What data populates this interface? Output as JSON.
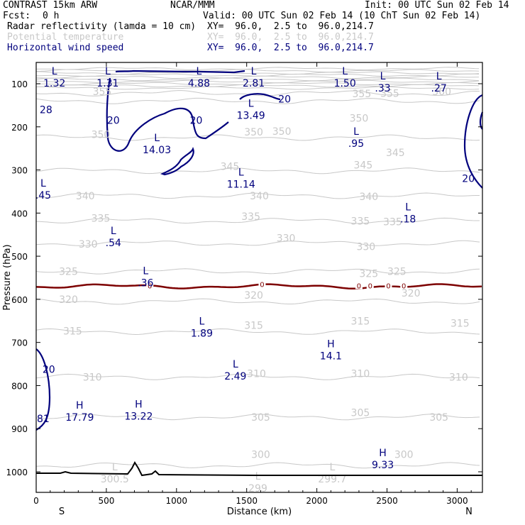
{
  "header": {
    "model": "CONTRAST 15km ARW",
    "org": "NCAR/MMM",
    "init": "Init: 00 UTC Sun 02 Feb 14",
    "fcst_label": "Fcst:",
    "fcst_value": "0 h",
    "valid": "Valid: 00 UTC Sun 02 Feb 14 (10 ChT Sun 02 Feb 14)",
    "fields": [
      {
        "name": "Radar reflectivity (lamda = 10 cm)",
        "xy": "XY=  96.0,  2.5 to  96.0,214.7",
        "color": "#000000"
      },
      {
        "name": "Potential temperature",
        "xy": "XY=  96.0,  2.5 to  96.0,214.7",
        "color": "#c8c8c8"
      },
      {
        "name": "Horizontal wind speed",
        "xy": "XY=  96.0,  2.5 to  96.0,214.7",
        "color": "#00007d"
      }
    ]
  },
  "chart_data": {
    "type": "contour-cross-section",
    "xlabel": "Distance (km)",
    "ylabel": "Pressure (hPa)",
    "xlim": [
      0,
      3180
    ],
    "ylim": [
      1040,
      57
    ],
    "x_ticks": [
      0,
      500,
      1000,
      1500,
      2000,
      2500,
      3000
    ],
    "y_ticks": [
      100,
      200,
      300,
      400,
      500,
      600,
      700,
      800,
      900,
      1000
    ],
    "x_end_labels": [
      "S",
      "N"
    ],
    "theta_contours": [
      {
        "level": 300,
        "p": 985,
        "labels": [
          {
            "x": 1600,
            "p": 960
          },
          {
            "x": 2620,
            "p": 960
          }
        ]
      },
      {
        "level": 305,
        "p": 873,
        "labels": [
          {
            "x": 1600,
            "p": 873
          },
          {
            "x": 2310,
            "p": 863
          },
          {
            "x": 2870,
            "p": 873
          }
        ]
      },
      {
        "level": 310,
        "p": 780,
        "labels": [
          {
            "x": 400,
            "p": 780
          },
          {
            "x": 1570,
            "p": 772
          },
          {
            "x": 2310,
            "p": 772
          },
          {
            "x": 3010,
            "p": 780
          }
        ]
      },
      {
        "level": 315,
        "p": 675,
        "labels": [
          {
            "x": 260,
            "p": 673
          },
          {
            "x": 1550,
            "p": 660
          },
          {
            "x": 2310,
            "p": 650
          },
          {
            "x": 3020,
            "p": 655
          }
        ]
      },
      {
        "level": 320,
        "p": 605,
        "labels": [
          {
            "x": 230,
            "p": 600
          },
          {
            "x": 1550,
            "p": 590
          },
          {
            "x": 2670,
            "p": 585
          }
        ]
      },
      {
        "level": 325,
        "p": 535,
        "labels": [
          {
            "x": 230,
            "p": 535
          },
          {
            "x": 2370,
            "p": 540
          },
          {
            "x": 2570,
            "p": 535
          }
        ]
      },
      {
        "level": 330,
        "p": 470,
        "labels": [
          {
            "x": 370,
            "p": 472
          },
          {
            "x": 1780,
            "p": 458
          },
          {
            "x": 2350,
            "p": 478
          }
        ]
      },
      {
        "level": 335,
        "p": 418,
        "labels": [
          {
            "x": 460,
            "p": 412
          },
          {
            "x": 1530,
            "p": 408
          },
          {
            "x": 2310,
            "p": 418
          },
          {
            "x": 2540,
            "p": 420
          }
        ]
      },
      {
        "level": 340,
        "p": 360,
        "labels": [
          {
            "x": 350,
            "p": 360
          },
          {
            "x": 1590,
            "p": 360
          },
          {
            "x": 2370,
            "p": 362
          }
        ]
      },
      {
        "level": 345,
        "p": 302,
        "labels": [
          {
            "x": 1380,
            "p": 292
          },
          {
            "x": 2330,
            "p": 288
          },
          {
            "x": 2560,
            "p": 260
          }
        ]
      },
      {
        "level": 350,
        "p": 225,
        "labels": [
          {
            "x": 460,
            "p": 218
          },
          {
            "x": 1550,
            "p": 212
          },
          {
            "x": 1750,
            "p": 210
          },
          {
            "x": 2300,
            "p": 180
          }
        ]
      },
      {
        "level": 355,
        "p": 140,
        "labels": [
          {
            "x": 470,
            "p": 118
          },
          {
            "x": 2320,
            "p": 123
          },
          {
            "x": 2520,
            "p": 122
          }
        ]
      },
      {
        "level": 360,
        "p": 122,
        "labels": [
          {
            "x": 2890,
            "p": 118
          }
        ]
      }
    ],
    "theta_top_band": [
      65,
      70,
      75,
      80,
      85,
      90,
      95,
      100,
      105,
      110
    ],
    "reflectivity_contour": {
      "level": "0",
      "labels": [
        {
          "x": 810,
          "p": 568
        },
        {
          "x": 1610,
          "p": 565
        },
        {
          "x": 2300,
          "p": 568
        },
        {
          "x": 2380,
          "p": 568
        },
        {
          "x": 2510,
          "p": 568
        },
        {
          "x": 2620,
          "p": 568
        }
      ],
      "color": "#7d0000"
    },
    "wind_contour_level": "20",
    "wind_labels": [
      {
        "text": "20",
        "x": 550,
        "p": 185
      },
      {
        "text": "20",
        "x": 1140,
        "p": 185
      },
      {
        "text": "20",
        "x": 1770,
        "p": 135
      },
      {
        "text": "20",
        "x": 3080,
        "p": 320
      },
      {
        "text": "20",
        "x": 90,
        "p": 762
      }
    ],
    "extrema": [
      {
        "type": "L",
        "value": "1.32",
        "x": 130,
        "p": 85
      },
      {
        "type": "L",
        "value": "1.31",
        "x": 510,
        "p": 85
      },
      {
        "type": "L",
        "value": "4.88",
        "x": 1160,
        "p": 85
      },
      {
        "type": "L",
        "value": "2.81",
        "x": 1550,
        "p": 85
      },
      {
        "type": "L",
        "value": "1.50",
        "x": 2200,
        "p": 85
      },
      {
        "type": "L",
        "value": ".33",
        "x": 2470,
        "p": 97
      },
      {
        "type": "L",
        "value": ".27",
        "x": 2870,
        "p": 97
      },
      {
        "type": "L",
        "value": "13.49",
        "x": 1530,
        "p": 160
      },
      {
        "type": "L",
        "value": "14.03",
        "x": 860,
        "p": 240
      },
      {
        "type": "L",
        "value": ".95",
        "x": 2280,
        "p": 225
      },
      {
        "type": "L",
        "value": "11.14",
        "x": 1460,
        "p": 320
      },
      {
        "type": "L",
        "value": ".45",
        "x": 50,
        "p": 345
      },
      {
        "type": "L",
        "value": ".18",
        "x": 2650,
        "p": 400
      },
      {
        "type": "L",
        "value": ".54",
        "x": 550,
        "p": 455
      },
      {
        "type": "L",
        "value": ".36",
        "x": 780,
        "p": 548
      },
      {
        "type": "L",
        "value": "1.89",
        "x": 1180,
        "p": 665
      },
      {
        "type": "H",
        "value": "14.1",
        "x": 2100,
        "p": 718
      },
      {
        "type": "L",
        "value": "2.49",
        "x": 1420,
        "p": 765
      },
      {
        "type": "H",
        "value": "17.79",
        "x": 310,
        "p": 860
      },
      {
        "type": "H",
        "value": "13.22",
        "x": 730,
        "p": 858
      },
      {
        "type": "H",
        "value": "9.33",
        "x": 2470,
        "p": 970
      },
      {
        "type": "L",
        "value": "300.5",
        "x": 560,
        "p": 1003
      },
      {
        "type": "L",
        "value": "299",
        "x": 1580,
        "p": 1025
      },
      {
        "type": "L",
        "value": "299.7",
        "x": 2110,
        "p": 1003
      }
    ],
    "edge_values": [
      {
        "value": "28",
        "x": 70,
        "p": 160
      },
      {
        "value": "81",
        "x": 50,
        "p": 877
      }
    ]
  }
}
